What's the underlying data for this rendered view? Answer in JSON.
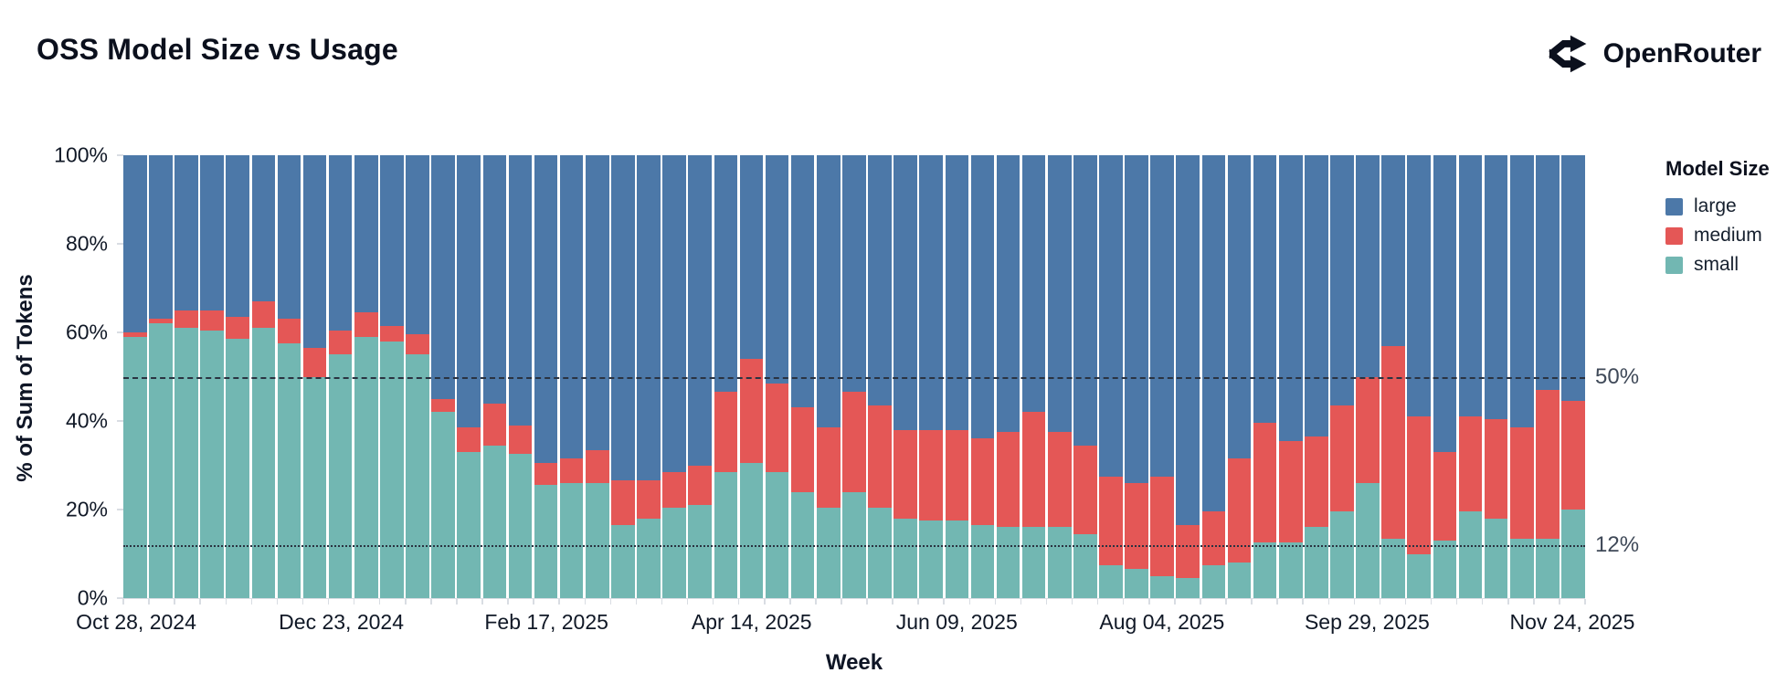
{
  "header": {
    "title": "OSS Model Size vs Usage",
    "brand": "OpenRouter"
  },
  "chart_data": {
    "type": "bar",
    "stacked": true,
    "normalized": true,
    "title": "OSS Model Size vs Usage",
    "xlabel": "Week",
    "ylabel": "% of Sum of Tokens",
    "ylim": [
      0,
      100
    ],
    "grid": false,
    "y_ticks": [
      {
        "label": "0%",
        "value": 0
      },
      {
        "label": "20%",
        "value": 20
      },
      {
        "label": "40%",
        "value": 40
      },
      {
        "label": "60%",
        "value": 60
      },
      {
        "label": "80%",
        "value": 80
      },
      {
        "label": "100%",
        "value": 100
      }
    ],
    "x_ticks": [
      {
        "label": "Oct 28, 2024",
        "index": 0
      },
      {
        "label": "Dec 23, 2024",
        "index": 8
      },
      {
        "label": "Feb 17, 2025",
        "index": 16
      },
      {
        "label": "Apr 14, 2025",
        "index": 24
      },
      {
        "label": "Jun 09, 2025",
        "index": 32
      },
      {
        "label": "Aug 04, 2025",
        "index": 40
      },
      {
        "label": "Sep 29, 2025",
        "index": 48
      },
      {
        "label": "Nov 24, 2025",
        "index": 56
      }
    ],
    "weeks": [
      "Oct 28, 2024",
      "Nov 04, 2024",
      "Nov 11, 2024",
      "Nov 18, 2024",
      "Nov 25, 2024",
      "Dec 02, 2024",
      "Dec 09, 2024",
      "Dec 16, 2024",
      "Dec 23, 2024",
      "Dec 30, 2024",
      "Jan 06, 2025",
      "Jan 13, 2025",
      "Jan 20, 2025",
      "Jan 27, 2025",
      "Feb 03, 2025",
      "Feb 10, 2025",
      "Feb 17, 2025",
      "Feb 24, 2025",
      "Mar 03, 2025",
      "Mar 10, 2025",
      "Mar 17, 2025",
      "Mar 24, 2025",
      "Mar 31, 2025",
      "Apr 07, 2025",
      "Apr 14, 2025",
      "Apr 21, 2025",
      "Apr 28, 2025",
      "May 05, 2025",
      "May 12, 2025",
      "May 19, 2025",
      "May 26, 2025",
      "Jun 02, 2025",
      "Jun 09, 2025",
      "Jun 16, 2025",
      "Jun 23, 2025",
      "Jun 30, 2025",
      "Jul 07, 2025",
      "Jul 14, 2025",
      "Jul 21, 2025",
      "Jul 28, 2025",
      "Aug 04, 2025",
      "Aug 11, 2025",
      "Aug 18, 2025",
      "Aug 25, 2025",
      "Sep 01, 2025",
      "Sep 08, 2025",
      "Sep 15, 2025",
      "Sep 22, 2025",
      "Sep 29, 2025",
      "Oct 06, 2025",
      "Oct 13, 2025",
      "Oct 20, 2025",
      "Oct 27, 2025",
      "Nov 03, 2025",
      "Nov 10, 2025",
      "Nov 17, 2025",
      "Nov 24, 2025"
    ],
    "series": [
      {
        "name": "small",
        "color": "#72b7b2",
        "values": [
          59,
          62,
          61,
          60.5,
          58.5,
          61,
          57.5,
          50,
          55,
          59,
          58,
          55,
          42,
          33,
          34.5,
          32.5,
          25.5,
          26,
          26,
          16.5,
          18,
          20.5,
          21,
          28.5,
          30.5,
          28.5,
          24,
          20.5,
          24,
          20.5,
          18,
          17.5,
          17.5,
          16.5,
          16,
          16,
          16,
          14.5,
          7.5,
          6.5,
          5,
          4.5,
          7.5,
          8,
          12.5,
          12.5,
          16,
          19.5,
          26,
          13.5,
          10,
          13,
          19.5,
          18,
          13.5,
          13.5,
          20
        ]
      },
      {
        "name": "medium",
        "color": "#e45756",
        "values": [
          1,
          1,
          4,
          4.5,
          5,
          6,
          5.5,
          6.5,
          5.5,
          5.5,
          3.5,
          4.5,
          3,
          5.5,
          9.5,
          6.5,
          5,
          5.5,
          7.5,
          10,
          8.5,
          8,
          9,
          18,
          23.5,
          20,
          19,
          18,
          22.5,
          23,
          20,
          20.5,
          20.5,
          19.5,
          21.5,
          26,
          21.5,
          20,
          20,
          19.5,
          22.5,
          12,
          12,
          23.5,
          27,
          23,
          20.5,
          24,
          24,
          43.5,
          31,
          20,
          21.5,
          22.5,
          25,
          33.5,
          24.5
        ]
      },
      {
        "name": "large",
        "color": "#4c78a8",
        "values": [
          40,
          37,
          35,
          35,
          36.5,
          33,
          37,
          43.5,
          39.5,
          35.5,
          38.5,
          40.5,
          55,
          61.5,
          56,
          61,
          69.5,
          68.5,
          66.5,
          73.5,
          73.5,
          71.5,
          70,
          53.5,
          46,
          51.5,
          57,
          61.5,
          53.5,
          56.5,
          62,
          62,
          62,
          64,
          62.5,
          58,
          62.5,
          65.5,
          72.5,
          74,
          72.5,
          83.5,
          80.5,
          68.5,
          60.5,
          64.5,
          63.5,
          56.5,
          50,
          43,
          59,
          67,
          59,
          59.5,
          61.5,
          53,
          55.5
        ]
      }
    ],
    "reference_lines": [
      {
        "value": 50,
        "label": "50%",
        "style": "dashed"
      },
      {
        "value": 12,
        "label": "12%",
        "style": "dotted"
      }
    ],
    "legend": {
      "title": "Model Size",
      "position": "right",
      "entries": [
        {
          "label": "large",
          "color": "#4c78a8"
        },
        {
          "label": "medium",
          "color": "#e45756"
        },
        {
          "label": "small",
          "color": "#72b7b2"
        }
      ]
    }
  }
}
